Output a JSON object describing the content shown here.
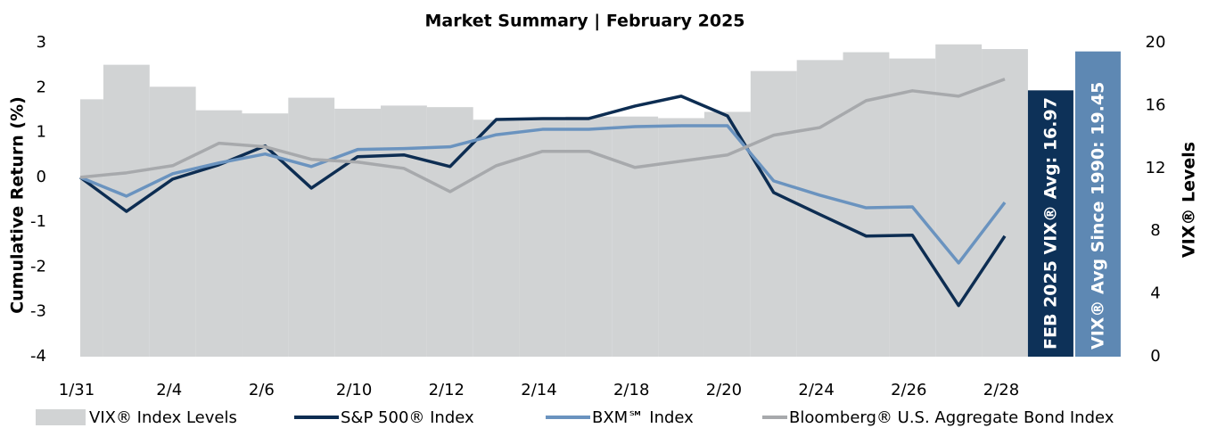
{
  "chart_data": {
    "type": "line",
    "title": "Market Summary | February 2025",
    "y_label": "Cumulative Return (%)",
    "y2_label": "VIX® Levels",
    "categories": [
      "1/31",
      null,
      "2/4",
      null,
      "2/6",
      null,
      "2/10",
      null,
      "2/12",
      null,
      "2/14",
      null,
      "2/18",
      null,
      "2/20",
      null,
      "2/24",
      null,
      "2/26",
      null,
      "2/28"
    ],
    "ylim": [
      -4,
      3
    ],
    "yticks": [
      -4,
      -3,
      -2,
      -1,
      0,
      1,
      2,
      3
    ],
    "y2lim": [
      0,
      20
    ],
    "y2ticks": [
      0,
      4,
      8,
      12,
      16,
      20
    ],
    "series": [
      {
        "name": "VIX® Index Levels",
        "type": "bar",
        "axis": "y2",
        "color": "#d1d3d4",
        "values": [
          16.4,
          18.6,
          17.2,
          15.7,
          15.5,
          16.5,
          15.8,
          16.0,
          15.9,
          15.1,
          15.2,
          15.3,
          15.3,
          15.2,
          15.6,
          18.2,
          18.9,
          19.4,
          19.0,
          19.9,
          19.6
        ]
      },
      {
        "name": "S&P 500® Index",
        "type": "line",
        "color": "#0d2d52",
        "values": [
          0,
          -0.76,
          -0.04,
          0.28,
          0.7,
          -0.24,
          0.46,
          0.5,
          0.24,
          1.29,
          1.31,
          1.31,
          1.59,
          1.81,
          1.37,
          -0.34,
          -0.83,
          -1.31,
          -1.29,
          -2.86,
          -1.31
        ]
      },
      {
        "name": "BXM℠ Index",
        "type": "line",
        "color": "#6a93bf",
        "values": [
          0,
          -0.42,
          0.08,
          0.32,
          0.52,
          0.24,
          0.62,
          0.64,
          0.68,
          0.95,
          1.07,
          1.07,
          1.13,
          1.15,
          1.15,
          -0.08,
          -0.4,
          -0.68,
          -0.66,
          -1.91,
          -0.56
        ]
      },
      {
        "name": "Bloomberg® U.S. Aggregate Bond Index",
        "type": "line",
        "color": "#a7a9ac",
        "values": [
          0,
          0.1,
          0.26,
          0.76,
          0.68,
          0.4,
          0.34,
          0.2,
          -0.32,
          0.26,
          0.58,
          0.58,
          0.22,
          0.36,
          0.5,
          0.94,
          1.11,
          1.71,
          1.93,
          1.81,
          2.19
        ]
      }
    ],
    "annotations": [
      {
        "label": "FEB 2025 VIX® Avg: 16.97",
        "value": 16.97,
        "color": "#0d3158"
      },
      {
        "label": "VIX® Avg Since 1990: 19.45",
        "value": 19.45,
        "color": "#5e88b3"
      }
    ]
  }
}
